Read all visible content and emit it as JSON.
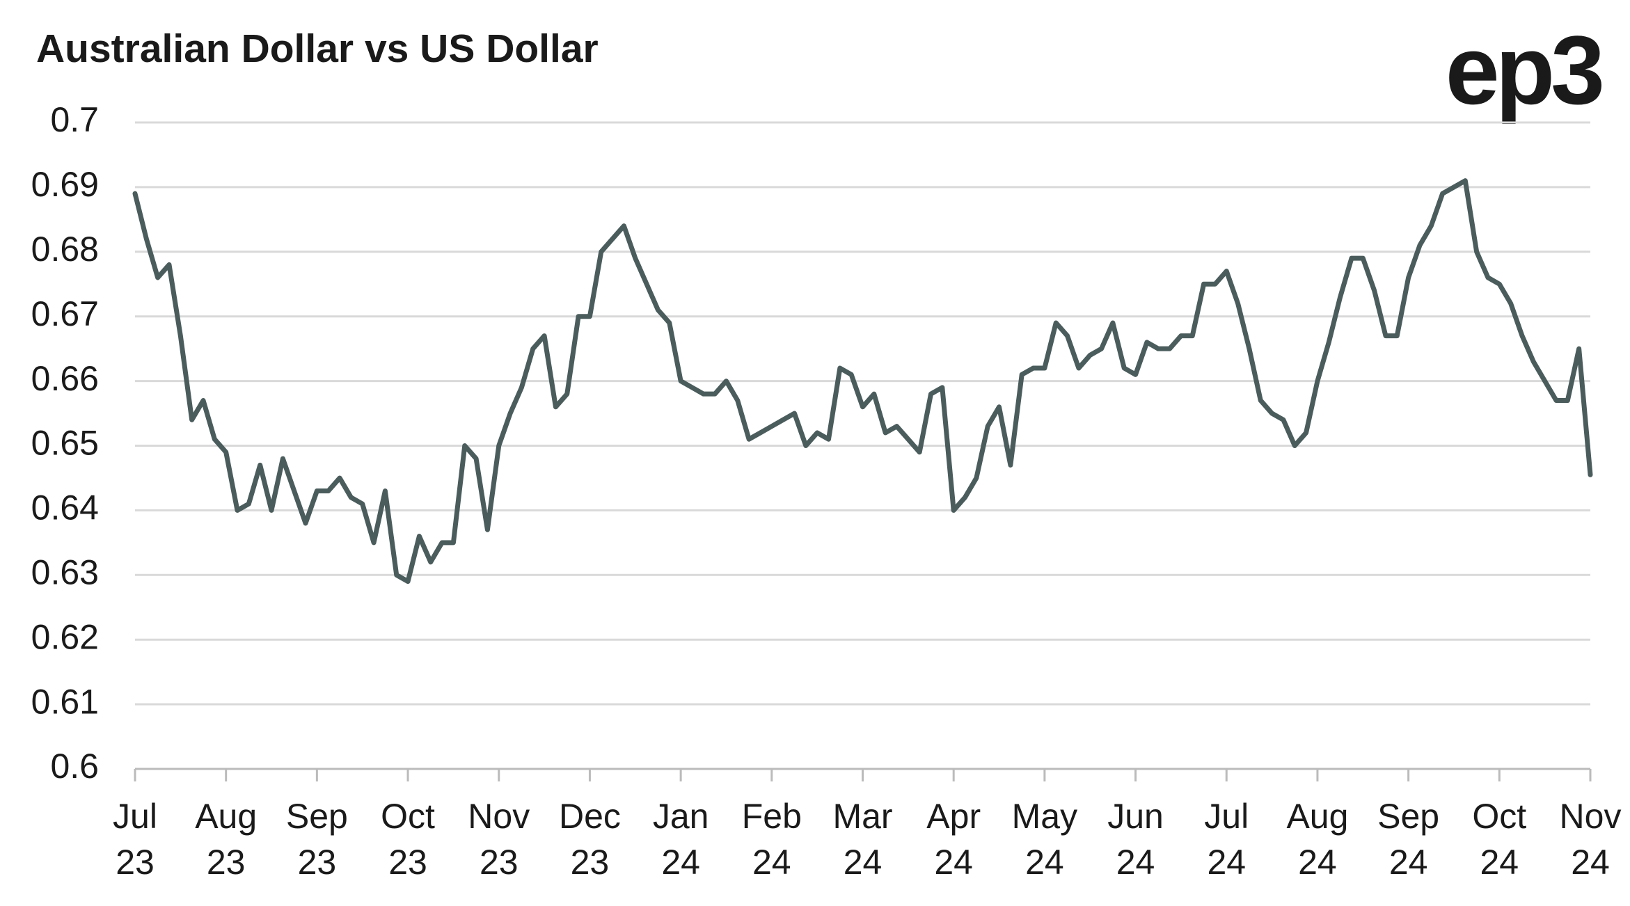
{
  "chart_data": {
    "type": "line",
    "title": "Australian Dollar vs US Dollar",
    "logo": "ep3",
    "categories": [
      "Jul 23",
      null,
      null,
      null,
      null,
      null,
      null,
      null,
      "Aug 23",
      null,
      null,
      null,
      null,
      null,
      null,
      null,
      "Sep 23",
      null,
      null,
      null,
      null,
      null,
      null,
      null,
      "Oct 23",
      null,
      null,
      null,
      null,
      null,
      null,
      null,
      "Nov 23",
      null,
      null,
      null,
      null,
      null,
      null,
      null,
      "Dec 23",
      null,
      null,
      null,
      null,
      null,
      null,
      null,
      "Jan 24",
      null,
      null,
      null,
      null,
      null,
      null,
      null,
      "Feb 24",
      null,
      null,
      null,
      null,
      null,
      null,
      null,
      "Mar 24",
      null,
      null,
      null,
      null,
      null,
      null,
      null,
      "Apr 24",
      null,
      null,
      null,
      null,
      null,
      null,
      null,
      "May 24",
      null,
      null,
      null,
      null,
      null,
      null,
      null,
      "Jun 24",
      null,
      null,
      null,
      null,
      null,
      null,
      null,
      "Jul 24",
      null,
      null,
      null,
      null,
      null,
      null,
      null,
      "Aug 24",
      null,
      null,
      null,
      null,
      null,
      null,
      null,
      "Sep 24",
      null,
      null,
      null,
      null,
      null,
      null,
      null,
      "Oct 24",
      null,
      null,
      null,
      null,
      null,
      null,
      null,
      "Nov 24"
    ],
    "values": [
      0.689,
      0.682,
      0.676,
      0.678,
      0.667,
      0.654,
      0.657,
      0.651,
      0.649,
      0.64,
      0.641,
      0.647,
      0.64,
      0.648,
      0.643,
      0.638,
      0.643,
      0.643,
      0.645,
      0.642,
      0.641,
      0.635,
      0.643,
      0.63,
      0.629,
      0.636,
      0.632,
      0.635,
      0.635,
      0.65,
      0.648,
      0.637,
      0.65,
      0.655,
      0.659,
      0.665,
      0.667,
      0.656,
      0.658,
      0.67,
      0.67,
      0.68,
      0.682,
      0.684,
      0.679,
      0.675,
      0.671,
      0.669,
      0.66,
      0.659,
      0.658,
      0.658,
      0.66,
      0.657,
      0.651,
      0.652,
      0.653,
      0.654,
      0.655,
      0.65,
      0.652,
      0.651,
      0.662,
      0.661,
      0.656,
      0.658,
      0.652,
      0.653,
      0.651,
      0.649,
      0.658,
      0.659,
      0.64,
      0.642,
      0.645,
      0.653,
      0.656,
      0.647,
      0.661,
      0.662,
      0.662,
      0.669,
      0.667,
      0.662,
      0.664,
      0.665,
      0.669,
      0.662,
      0.661,
      0.666,
      0.665,
      0.665,
      0.667,
      0.667,
      0.675,
      0.675,
      0.677,
      0.672,
      0.665,
      0.657,
      0.655,
      0.654,
      0.65,
      0.652,
      0.66,
      0.666,
      0.673,
      0.679,
      0.679,
      0.674,
      0.667,
      0.667,
      0.676,
      0.681,
      0.684,
      0.689,
      0.69,
      0.691,
      0.68,
      0.676,
      0.675,
      0.672,
      0.667,
      0.663,
      0.66,
      0.657,
      0.657,
      0.665,
      0.6455
    ],
    "color": "#4b5c5c",
    "ylim": [
      0.6,
      0.7
    ],
    "yticks": [
      0.6,
      0.61,
      0.62,
      0.63,
      0.64,
      0.65,
      0.66,
      0.67,
      0.68,
      0.69,
      0.7
    ],
    "grid": true
  }
}
